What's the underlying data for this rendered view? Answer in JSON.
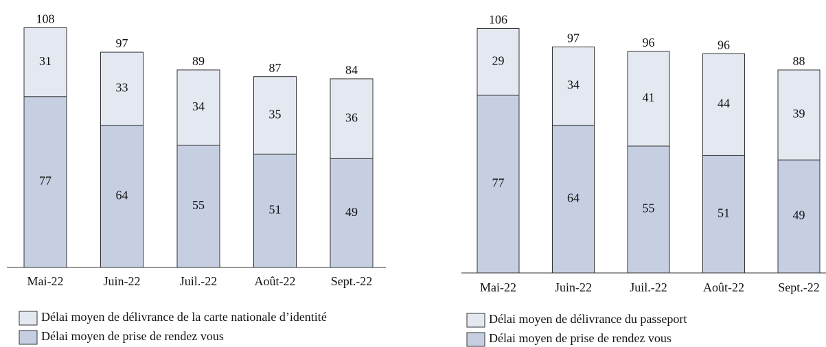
{
  "chart_data": [
    {
      "type": "stacked_bar",
      "categories": [
        "Mai-22",
        "Juin-22",
        "Juil.-22",
        "Août-22",
        "Sept.-22"
      ],
      "series": [
        {
          "name": "Délai moyen de prise de rendez vous",
          "color": "#c5cfe1",
          "values": [
            77,
            64,
            55,
            51,
            49
          ]
        },
        {
          "name": "Délai moyen de délivrance de la carte nationale d’identité",
          "color": "#e3e8f1",
          "values": [
            31,
            33,
            34,
            35,
            36
          ]
        }
      ],
      "totals": [
        108,
        97,
        89,
        87,
        84
      ],
      "ylim": [
        0,
        110
      ]
    },
    {
      "type": "stacked_bar",
      "categories": [
        "Mai-22",
        "Juin-22",
        "Juil.-22",
        "Août-22",
        "Sept.-22"
      ],
      "series": [
        {
          "name": "Délai moyen de prise de rendez vous",
          "color": "#c5cfe1",
          "values": [
            77,
            64,
            55,
            51,
            49
          ]
        },
        {
          "name": "Délai moyen de délivrance du passeport",
          "color": "#e3e8f1",
          "values": [
            29,
            34,
            41,
            44,
            39
          ]
        }
      ],
      "totals": [
        106,
        97,
        96,
        96,
        88
      ],
      "ylim": [
        0,
        110
      ]
    }
  ]
}
